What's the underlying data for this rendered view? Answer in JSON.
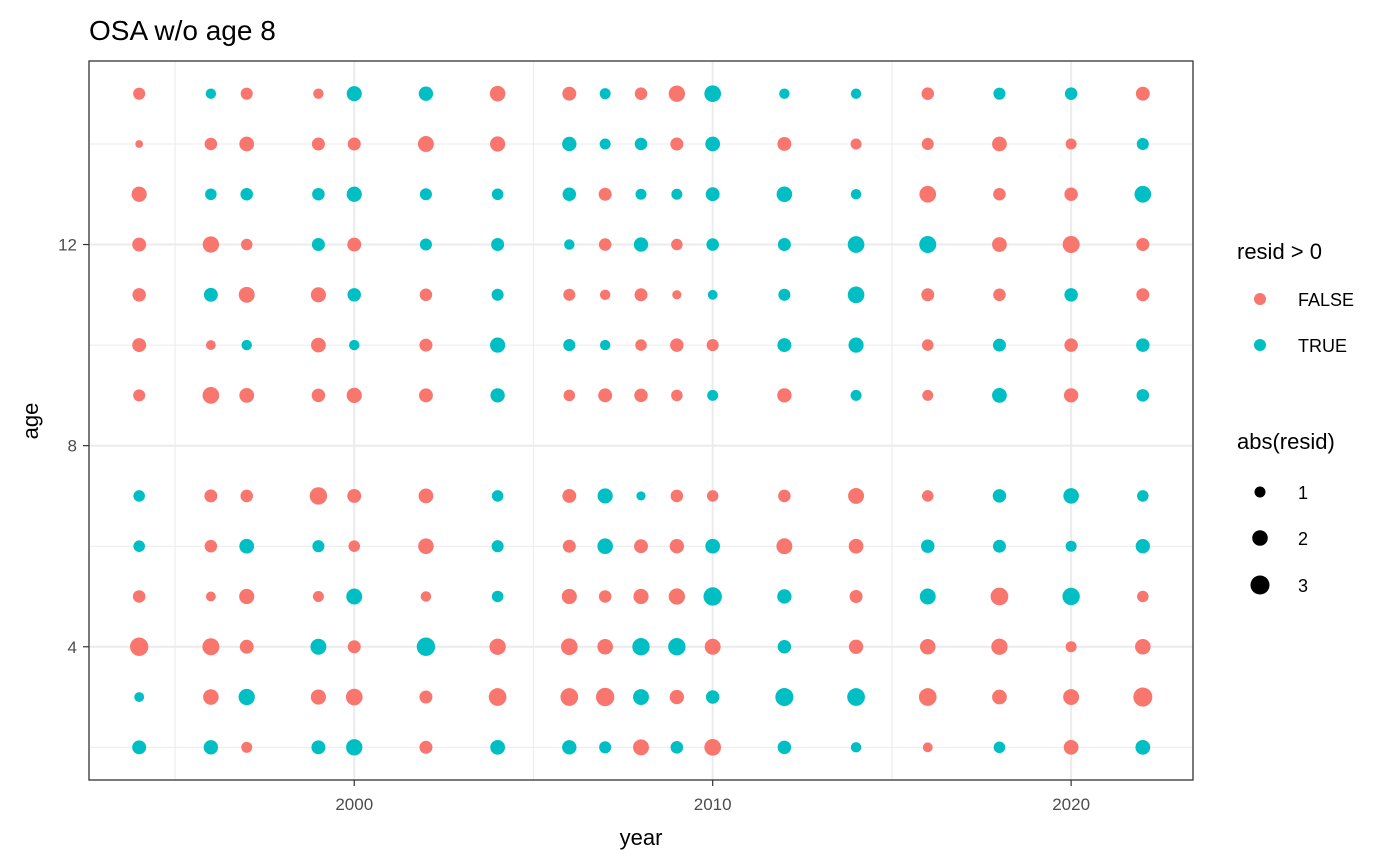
{
  "chart_data": {
    "type": "scatter",
    "title": "OSA w/o age 8",
    "xlabel": "year",
    "ylabel": "age",
    "xlim": [
      1992.6,
      2023.4
    ],
    "ylim": [
      1.35,
      15.65
    ],
    "x_ticks": [
      2000,
      2010,
      2020
    ],
    "y_ticks": [
      4,
      8,
      12
    ],
    "grid": true,
    "legend_position": "right",
    "colors": {
      "FALSE": "#F8766D",
      "TRUE": "#00BFC4"
    },
    "legend_color": {
      "title": "resid > 0",
      "items": [
        "FALSE",
        "TRUE"
      ]
    },
    "legend_size": {
      "title": "abs(resid)",
      "items": [
        "1",
        "2",
        "3"
      ],
      "values": [
        1,
        2,
        3
      ]
    },
    "years": [
      1994,
      1996,
      1997,
      1999,
      2000,
      2002,
      2004,
      2006,
      2007,
      2008,
      2009,
      2010,
      2012,
      2014,
      2016,
      2018,
      2020,
      2022
    ],
    "rows": [
      {
        "age": 15,
        "points": [
          [
            1994,
            "F",
            1.2
          ],
          [
            1996,
            "T",
            0.9
          ],
          [
            1997,
            "F",
            1.2
          ],
          [
            1999,
            "F",
            0.9
          ],
          [
            2000,
            "T",
            1.9
          ],
          [
            2002,
            "T",
            1.7
          ],
          [
            2004,
            "F",
            2.0
          ],
          [
            2006,
            "F",
            1.6
          ],
          [
            2007,
            "T",
            1.0
          ],
          [
            2008,
            "F",
            1.3
          ],
          [
            2009,
            "F",
            2.2
          ],
          [
            2010,
            "T",
            2.3
          ],
          [
            2012,
            "T",
            0.9
          ],
          [
            2014,
            "T",
            0.9
          ],
          [
            2016,
            "F",
            1.3
          ],
          [
            2018,
            "T",
            1.2
          ],
          [
            2020,
            "T",
            1.3
          ],
          [
            2022,
            "F",
            1.6
          ]
        ]
      },
      {
        "age": 14,
        "points": [
          [
            1994,
            "F",
            0.5
          ],
          [
            1996,
            "F",
            1.3
          ],
          [
            1997,
            "F",
            1.8
          ],
          [
            1999,
            "F",
            1.4
          ],
          [
            2000,
            "F",
            1.4
          ],
          [
            2002,
            "F",
            2.1
          ],
          [
            2004,
            "F",
            1.9
          ],
          [
            2006,
            "T",
            1.7
          ],
          [
            2007,
            "T",
            1.0
          ],
          [
            2008,
            "T",
            1.3
          ],
          [
            2009,
            "F",
            1.4
          ],
          [
            2010,
            "T",
            1.8
          ],
          [
            2012,
            "F",
            1.6
          ],
          [
            2014,
            "F",
            1.0
          ],
          [
            2016,
            "F",
            1.2
          ],
          [
            2018,
            "F",
            1.8
          ],
          [
            2020,
            "F",
            1.0
          ],
          [
            2022,
            "T",
            1.2
          ]
        ]
      },
      {
        "age": 13,
        "points": [
          [
            1994,
            "F",
            1.9
          ],
          [
            1996,
            "T",
            1.1
          ],
          [
            1997,
            "T",
            1.3
          ],
          [
            1999,
            "T",
            1.3
          ],
          [
            2000,
            "T",
            1.9
          ],
          [
            2002,
            "T",
            1.2
          ],
          [
            2004,
            "T",
            1.1
          ],
          [
            2006,
            "T",
            1.5
          ],
          [
            2007,
            "F",
            1.4
          ],
          [
            2008,
            "T",
            1.0
          ],
          [
            2009,
            "T",
            1.0
          ],
          [
            2010,
            "T",
            1.6
          ],
          [
            2012,
            "T",
            2.0
          ],
          [
            2014,
            "T",
            0.9
          ],
          [
            2016,
            "F",
            2.3
          ],
          [
            2018,
            "F",
            1.3
          ],
          [
            2020,
            "F",
            1.5
          ],
          [
            2022,
            "T",
            2.3
          ]
        ]
      },
      {
        "age": 12,
        "points": [
          [
            1994,
            "F",
            1.6
          ],
          [
            1996,
            "F",
            2.2
          ],
          [
            1997,
            "F",
            1.1
          ],
          [
            1999,
            "T",
            1.4
          ],
          [
            2000,
            "F",
            1.6
          ],
          [
            2002,
            "T",
            1.2
          ],
          [
            2004,
            "T",
            1.4
          ],
          [
            2006,
            "T",
            0.9
          ],
          [
            2007,
            "F",
            1.3
          ],
          [
            2008,
            "T",
            1.7
          ],
          [
            2009,
            "F",
            1.1
          ],
          [
            2010,
            "T",
            1.3
          ],
          [
            2012,
            "T",
            1.4
          ],
          [
            2014,
            "T",
            2.3
          ],
          [
            2016,
            "T",
            2.4
          ],
          [
            2018,
            "F",
            1.8
          ],
          [
            2020,
            "F",
            2.4
          ],
          [
            2022,
            "F",
            1.4
          ]
        ]
      },
      {
        "age": 11,
        "points": [
          [
            1994,
            "F",
            1.5
          ],
          [
            1996,
            "T",
            1.6
          ],
          [
            1997,
            "F",
            2.1
          ],
          [
            1999,
            "F",
            1.9
          ],
          [
            2000,
            "T",
            1.5
          ],
          [
            2002,
            "F",
            1.3
          ],
          [
            2004,
            "T",
            1.2
          ],
          [
            2006,
            "F",
            1.2
          ],
          [
            2007,
            "F",
            0.9
          ],
          [
            2008,
            "F",
            1.4
          ],
          [
            2009,
            "F",
            0.7
          ],
          [
            2010,
            "T",
            0.8
          ],
          [
            2012,
            "T",
            1.2
          ],
          [
            2014,
            "T",
            2.3
          ],
          [
            2016,
            "F",
            1.4
          ],
          [
            2018,
            "F",
            1.3
          ],
          [
            2020,
            "T",
            1.5
          ],
          [
            2022,
            "F",
            1.4
          ]
        ]
      },
      {
        "age": 10,
        "points": [
          [
            1994,
            "F",
            1.6
          ],
          [
            1996,
            "F",
            0.8
          ],
          [
            1997,
            "T",
            0.9
          ],
          [
            1999,
            "F",
            1.8
          ],
          [
            2000,
            "T",
            0.9
          ],
          [
            2002,
            "F",
            1.4
          ],
          [
            2004,
            "T",
            1.9
          ],
          [
            2006,
            "T",
            1.2
          ],
          [
            2007,
            "T",
            0.9
          ],
          [
            2008,
            "F",
            1.1
          ],
          [
            2009,
            "F",
            1.5
          ],
          [
            2010,
            "F",
            1.2
          ],
          [
            2012,
            "T",
            1.6
          ],
          [
            2014,
            "T",
            1.9
          ],
          [
            2016,
            "F",
            1.1
          ],
          [
            2018,
            "T",
            1.4
          ],
          [
            2020,
            "F",
            1.5
          ],
          [
            2022,
            "T",
            1.5
          ]
        ]
      },
      {
        "age": 9,
        "points": [
          [
            1994,
            "F",
            1.2
          ],
          [
            1996,
            "F",
            2.3
          ],
          [
            1997,
            "F",
            1.8
          ],
          [
            1999,
            "F",
            1.5
          ],
          [
            2000,
            "F",
            1.9
          ],
          [
            2002,
            "F",
            1.6
          ],
          [
            2004,
            "T",
            1.7
          ],
          [
            2006,
            "F",
            1.1
          ],
          [
            2007,
            "F",
            1.6
          ],
          [
            2008,
            "F",
            1.5
          ],
          [
            2009,
            "F",
            1.1
          ],
          [
            2010,
            "T",
            1.0
          ],
          [
            2012,
            "F",
            1.7
          ],
          [
            2014,
            "T",
            1.0
          ],
          [
            2016,
            "F",
            1.0
          ],
          [
            2018,
            "T",
            1.8
          ],
          [
            2020,
            "F",
            1.7
          ],
          [
            2022,
            "T",
            1.3
          ]
        ]
      },
      {
        "age": 7,
        "points": [
          [
            1994,
            "T",
            1.1
          ],
          [
            1996,
            "F",
            1.4
          ],
          [
            1997,
            "F",
            1.3
          ],
          [
            1999,
            "F",
            2.5
          ],
          [
            2000,
            "F",
            1.6
          ],
          [
            2002,
            "F",
            1.8
          ],
          [
            2004,
            "T",
            1.1
          ],
          [
            2006,
            "F",
            1.6
          ],
          [
            2007,
            "T",
            1.9
          ],
          [
            2008,
            "T",
            0.7
          ],
          [
            2009,
            "F",
            1.3
          ],
          [
            2010,
            "F",
            1.1
          ],
          [
            2012,
            "F",
            1.3
          ],
          [
            2014,
            "F",
            2.1
          ],
          [
            2016,
            "F",
            1.1
          ],
          [
            2018,
            "T",
            1.5
          ],
          [
            2020,
            "T",
            2.0
          ],
          [
            2022,
            "T",
            1.1
          ]
        ]
      },
      {
        "age": 6,
        "points": [
          [
            1994,
            "T",
            1.1
          ],
          [
            1996,
            "F",
            1.3
          ],
          [
            1997,
            "T",
            1.8
          ],
          [
            1999,
            "T",
            1.2
          ],
          [
            2000,
            "F",
            1.1
          ],
          [
            2002,
            "F",
            2.0
          ],
          [
            2004,
            "T",
            1.2
          ],
          [
            2006,
            "F",
            1.4
          ],
          [
            2007,
            "T",
            2.0
          ],
          [
            2008,
            "F",
            1.6
          ],
          [
            2009,
            "F",
            1.7
          ],
          [
            2010,
            "T",
            1.8
          ],
          [
            2012,
            "F",
            2.1
          ],
          [
            2014,
            "F",
            1.8
          ],
          [
            2016,
            "T",
            1.5
          ],
          [
            2018,
            "T",
            1.4
          ],
          [
            2020,
            "T",
            1.0
          ],
          [
            2022,
            "T",
            1.7
          ]
        ]
      },
      {
        "age": 5,
        "points": [
          [
            1994,
            "F",
            1.3
          ],
          [
            1996,
            "F",
            0.8
          ],
          [
            1997,
            "F",
            1.9
          ],
          [
            1999,
            "F",
            1.0
          ],
          [
            2000,
            "T",
            2.1
          ],
          [
            2002,
            "F",
            0.9
          ],
          [
            2004,
            "T",
            1.1
          ],
          [
            2006,
            "F",
            1.9
          ],
          [
            2007,
            "F",
            1.3
          ],
          [
            2008,
            "F",
            1.9
          ],
          [
            2009,
            "F",
            2.2
          ],
          [
            2010,
            "T",
            2.8
          ],
          [
            2012,
            "T",
            1.7
          ],
          [
            2014,
            "F",
            1.4
          ],
          [
            2016,
            "T",
            2.1
          ],
          [
            2018,
            "F",
            2.6
          ],
          [
            2020,
            "T",
            2.5
          ],
          [
            2022,
            "F",
            1.1
          ]
        ]
      },
      {
        "age": 4,
        "points": [
          [
            1994,
            "F",
            2.8
          ],
          [
            1996,
            "F",
            2.4
          ],
          [
            1997,
            "F",
            1.6
          ],
          [
            1999,
            "T",
            2.1
          ],
          [
            2000,
            "F",
            1.4
          ],
          [
            2002,
            "T",
            2.8
          ],
          [
            2004,
            "F",
            2.2
          ],
          [
            2006,
            "F",
            2.3
          ],
          [
            2007,
            "F",
            2.0
          ],
          [
            2008,
            "T",
            2.5
          ],
          [
            2009,
            "T",
            2.5
          ],
          [
            2010,
            "F",
            2.1
          ],
          [
            2012,
            "T",
            1.5
          ],
          [
            2014,
            "F",
            1.7
          ],
          [
            2016,
            "F",
            2.0
          ],
          [
            2018,
            "F",
            2.2
          ],
          [
            2020,
            "F",
            1.0
          ],
          [
            2022,
            "F",
            2.0
          ]
        ]
      },
      {
        "age": 3,
        "points": [
          [
            1994,
            "T",
            0.8
          ],
          [
            1996,
            "F",
            2.0
          ],
          [
            1997,
            "T",
            2.2
          ],
          [
            1999,
            "F",
            1.9
          ],
          [
            2000,
            "F",
            2.3
          ],
          [
            2002,
            "F",
            1.4
          ],
          [
            2004,
            "F",
            2.6
          ],
          [
            2006,
            "F",
            2.6
          ],
          [
            2007,
            "F",
            2.8
          ],
          [
            2008,
            "T",
            2.1
          ],
          [
            2009,
            "F",
            1.7
          ],
          [
            2010,
            "T",
            1.5
          ],
          [
            2012,
            "T",
            2.7
          ],
          [
            2014,
            "T",
            2.6
          ],
          [
            2016,
            "F",
            2.6
          ],
          [
            2018,
            "F",
            1.8
          ],
          [
            2020,
            "F",
            2.1
          ],
          [
            2022,
            "F",
            3.0
          ]
        ]
      },
      {
        "age": 2,
        "points": [
          [
            1994,
            "T",
            1.6
          ],
          [
            1996,
            "T",
            1.7
          ],
          [
            1997,
            "F",
            1.0
          ],
          [
            1999,
            "T",
            1.6
          ],
          [
            2000,
            "T",
            2.2
          ],
          [
            2002,
            "F",
            1.4
          ],
          [
            2004,
            "T",
            1.8
          ],
          [
            2006,
            "T",
            1.7
          ],
          [
            2007,
            "T",
            1.2
          ],
          [
            2008,
            "F",
            2.1
          ],
          [
            2009,
            "T",
            1.3
          ],
          [
            2010,
            "F",
            2.3
          ],
          [
            2012,
            "T",
            1.5
          ],
          [
            2014,
            "T",
            0.9
          ],
          [
            2016,
            "F",
            0.8
          ],
          [
            2018,
            "T",
            1.1
          ],
          [
            2020,
            "F",
            1.8
          ],
          [
            2022,
            "T",
            1.8
          ]
        ]
      }
    ]
  }
}
